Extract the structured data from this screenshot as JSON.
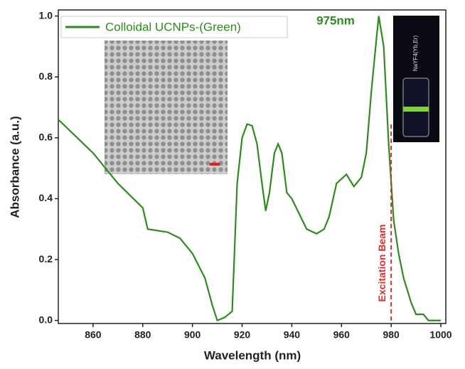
{
  "chart_data": {
    "type": "line",
    "xlabel": "Wavelength (nm)",
    "ylabel": "Absorbance (a.u.)",
    "xlim": [
      846,
      1002
    ],
    "ylim": [
      -0.01,
      1.02
    ],
    "xticks": [
      860,
      880,
      900,
      920,
      940,
      960,
      980,
      1000
    ],
    "yticks": [
      {
        "value": 0,
        "label": "0.0"
      },
      {
        "value": 0.2,
        "label": "0.2"
      },
      {
        "value": 0.4,
        "label": "0.4"
      },
      {
        "value": 0.6,
        "label": "0.6"
      },
      {
        "value": 0.8,
        "label": "0.8"
      },
      {
        "value": 1,
        "label": "1.0"
      }
    ],
    "x": [
      846,
      860,
      870,
      880,
      882,
      890,
      895,
      900,
      905,
      908,
      910,
      913,
      916,
      918,
      920,
      922,
      924,
      926,
      928,
      929.5,
      931,
      933,
      934.5,
      936,
      938,
      940,
      943,
      946,
      950,
      953,
      955,
      958,
      962,
      965,
      968,
      970,
      972,
      974,
      975,
      977,
      979,
      981,
      983,
      985,
      988,
      990,
      993,
      995,
      1000
    ],
    "series": [
      {
        "name": "Colloidal UCNPs-(Green)",
        "color": "#2e8b1e",
        "values": [
          0.66,
          0.55,
          0.45,
          0.37,
          0.3,
          0.29,
          0.27,
          0.22,
          0.14,
          0.05,
          0.0,
          0.01,
          0.03,
          0.45,
          0.6,
          0.645,
          0.64,
          0.58,
          0.45,
          0.36,
          0.42,
          0.55,
          0.58,
          0.55,
          0.42,
          0.4,
          0.35,
          0.3,
          0.285,
          0.3,
          0.34,
          0.45,
          0.48,
          0.44,
          0.47,
          0.55,
          0.75,
          0.92,
          1.0,
          0.9,
          0.58,
          0.33,
          0.22,
          0.14,
          0.06,
          0.02,
          0.02,
          0.0,
          0.0
        ]
      }
    ],
    "peak_label": "975nm",
    "excitation_line": {
      "x": 980,
      "label": "Excitation Beam",
      "color": "#d9302c"
    },
    "inset_label": "NaYF4(Yb,Er)"
  }
}
